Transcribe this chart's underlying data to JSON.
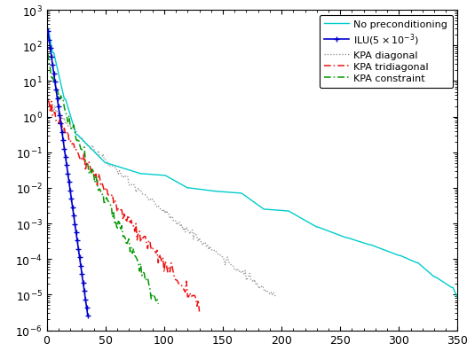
{
  "title": "",
  "xlabel": "",
  "ylabel": "",
  "xlim": [
    0,
    350
  ],
  "ylim_log": [
    -6,
    3
  ],
  "legend_entries": [
    "No preconditioning",
    "ILU(5×10$^{-3}$)",
    "KPA diagonal",
    "KPA tridiagonal",
    "KPA constraint"
  ],
  "line_colors": [
    "#00dddd",
    "#0000dd",
    "#999999",
    "#ee2222",
    "#00aa00"
  ],
  "background_color": "#ffffff",
  "tick_labelsize": 9,
  "legend_fontsize": 8
}
